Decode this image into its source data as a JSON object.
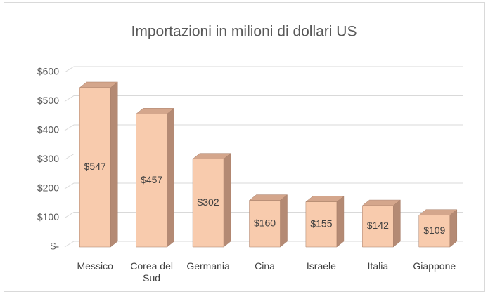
{
  "chart_data": {
    "type": "bar3d",
    "title": "Importazioni in milioni di dollari US",
    "categories": [
      "Messico",
      "Corea del Sud",
      "Germania",
      "Cina",
      "Israele",
      "Italia",
      "Giappone"
    ],
    "values": [
      547,
      457,
      302,
      160,
      155,
      142,
      109
    ],
    "value_labels": [
      "$547",
      "$457",
      "$302",
      "$160",
      "$155",
      "$142",
      "$109"
    ],
    "color": "#f8cbad",
    "ylim": [
      0,
      600
    ],
    "yticks": [
      {
        "value": 0,
        "label": "$-"
      },
      {
        "value": 100,
        "label": "$100"
      },
      {
        "value": 200,
        "label": "$200"
      },
      {
        "value": 300,
        "label": "$300"
      },
      {
        "value": 400,
        "label": "$400"
      },
      {
        "value": 500,
        "label": "$500"
      },
      {
        "value": 600,
        "label": "$600"
      }
    ],
    "grid": true
  }
}
